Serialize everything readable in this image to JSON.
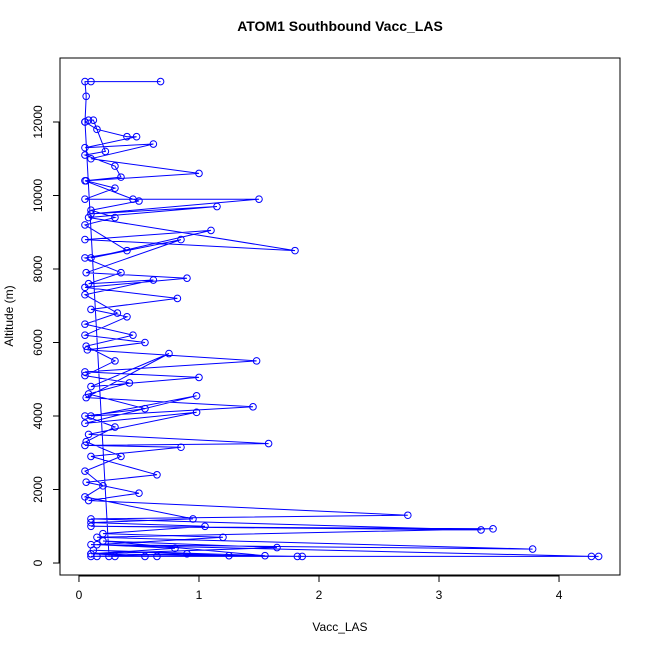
{
  "chart_data": {
    "type": "line",
    "title": "ATOM1 Southbound Vacc_LAS",
    "x_label": "Vacc_LAS",
    "y_label": "Altitude (m)",
    "color": "#0000ff",
    "xlim": [
      -0.158,
      4.508
    ],
    "ylim": [
      -326,
      13741
    ],
    "xticks": [
      0,
      1,
      2,
      3,
      4
    ],
    "yticks": [
      0,
      2000,
      4000,
      6000,
      8000,
      10000,
      12000
    ],
    "x": [
      0.68,
      0.1,
      0.05,
      0.06,
      0.05,
      0.15,
      0.4,
      0.48,
      0.05,
      0.62,
      0.1,
      1.0,
      0.06,
      0.3,
      0.05,
      1.5,
      0.1,
      1.15,
      0.08,
      1.8,
      0.05,
      1.1,
      0.1,
      0.85,
      0.06,
      0.9,
      0.05,
      0.82,
      0.1,
      0.4,
      0.05,
      0.55,
      0.07,
      1.48,
      0.05,
      1.0,
      0.1,
      0.75,
      0.06,
      1.45,
      0.1,
      0.98,
      0.05,
      0.98,
      0.08,
      1.58,
      0.05,
      0.85,
      0.1,
      0.65,
      0.06,
      0.5,
      0.08,
      2.74,
      0.1,
      3.35,
      0.1,
      3.45,
      0.15,
      3.78,
      0.1,
      4.27,
      4.33,
      0.15,
      0.3,
      1.82,
      1.86,
      0.1,
      1.65,
      0.2,
      1.55,
      0.12,
      1.25,
      0.25,
      0.05,
      0.08,
      0.12,
      0.22,
      0.05,
      0.3,
      0.35,
      0.05,
      0.45,
      0.5,
      0.1,
      0.3,
      0.05,
      0.4,
      0.05,
      0.35,
      0.08,
      0.62,
      0.05,
      0.32,
      0.05,
      0.45,
      0.06,
      0.3,
      0.05,
      0.42,
      0.08,
      0.55,
      0.05,
      0.3,
      0.06,
      0.35,
      0.05,
      0.2,
      0.05,
      0.95,
      0.1,
      1.05,
      0.2,
      1.2,
      0.15,
      0.8,
      0.1,
      0.55,
      0.65,
      0.1,
      0.9
    ],
    "y": [
      13100,
      13100,
      13100,
      12700,
      12000,
      11800,
      11600,
      11600,
      11300,
      11400,
      11000,
      10600,
      10400,
      10200,
      9900,
      9900,
      9500,
      9700,
      9400,
      8500,
      8800,
      9050,
      8300,
      8800,
      7900,
      7750,
      7500,
      7200,
      6900,
      6700,
      6200,
      6000,
      5800,
      5500,
      5200,
      5050,
      4800,
      5700,
      4500,
      4250,
      4000,
      4550,
      3800,
      4100,
      3500,
      3250,
      3200,
      3150,
      2900,
      2400,
      2200,
      1900,
      1700,
      1300,
      1200,
      900,
      1000,
      930,
      700,
      380,
      500,
      180,
      180,
      180,
      180,
      180,
      180,
      250,
      420,
      600,
      200,
      350,
      200,
      180,
      12000,
      12050,
      12050,
      11200,
      11100,
      10800,
      10500,
      10400,
      9900,
      9850,
      9600,
      9400,
      9200,
      8500,
      8300,
      7900,
      7600,
      7700,
      7300,
      6800,
      6500,
      6200,
      5900,
      5500,
      5100,
      4900,
      4600,
      4200,
      4000,
      3700,
      3300,
      2900,
      2500,
      2100,
      1800,
      1200,
      1100,
      1000,
      800,
      700,
      500,
      400,
      250,
      180,
      180,
      180,
      250
    ]
  }
}
